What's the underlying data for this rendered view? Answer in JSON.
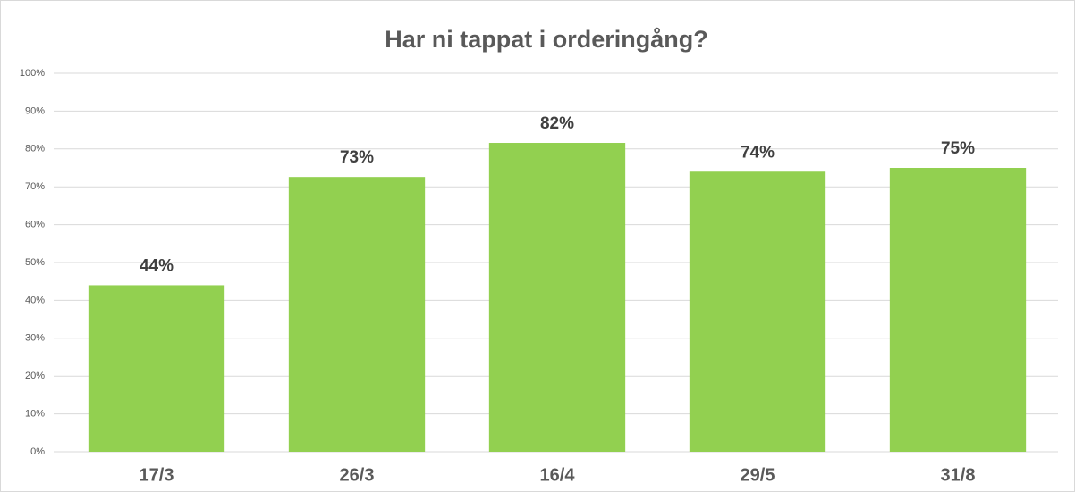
{
  "chart_data": {
    "type": "bar",
    "title": "Har ni tappat i orderingång?",
    "categories": [
      "17/3",
      "26/3",
      "16/4",
      "29/5",
      "31/8"
    ],
    "values": [
      44,
      72.6,
      81.6,
      74,
      75
    ],
    "value_labels": [
      "44%",
      "73%",
      "82%",
      "74%",
      "75%"
    ],
    "color": "#92d050",
    "ylim": [
      0,
      100
    ],
    "yticks": [
      {
        "value": 0,
        "label": "0%"
      },
      {
        "value": 10,
        "label": "10%"
      },
      {
        "value": 20,
        "label": "20%"
      },
      {
        "value": 30,
        "label": "30%"
      },
      {
        "value": 40,
        "label": "40%"
      },
      {
        "value": 50,
        "label": "50%"
      },
      {
        "value": 60,
        "label": "60%"
      },
      {
        "value": 70,
        "label": "70%"
      },
      {
        "value": 80,
        "label": "80%"
      },
      {
        "value": 90,
        "label": "90%"
      },
      {
        "value": 100,
        "label": "100%"
      }
    ],
    "grid": true
  }
}
